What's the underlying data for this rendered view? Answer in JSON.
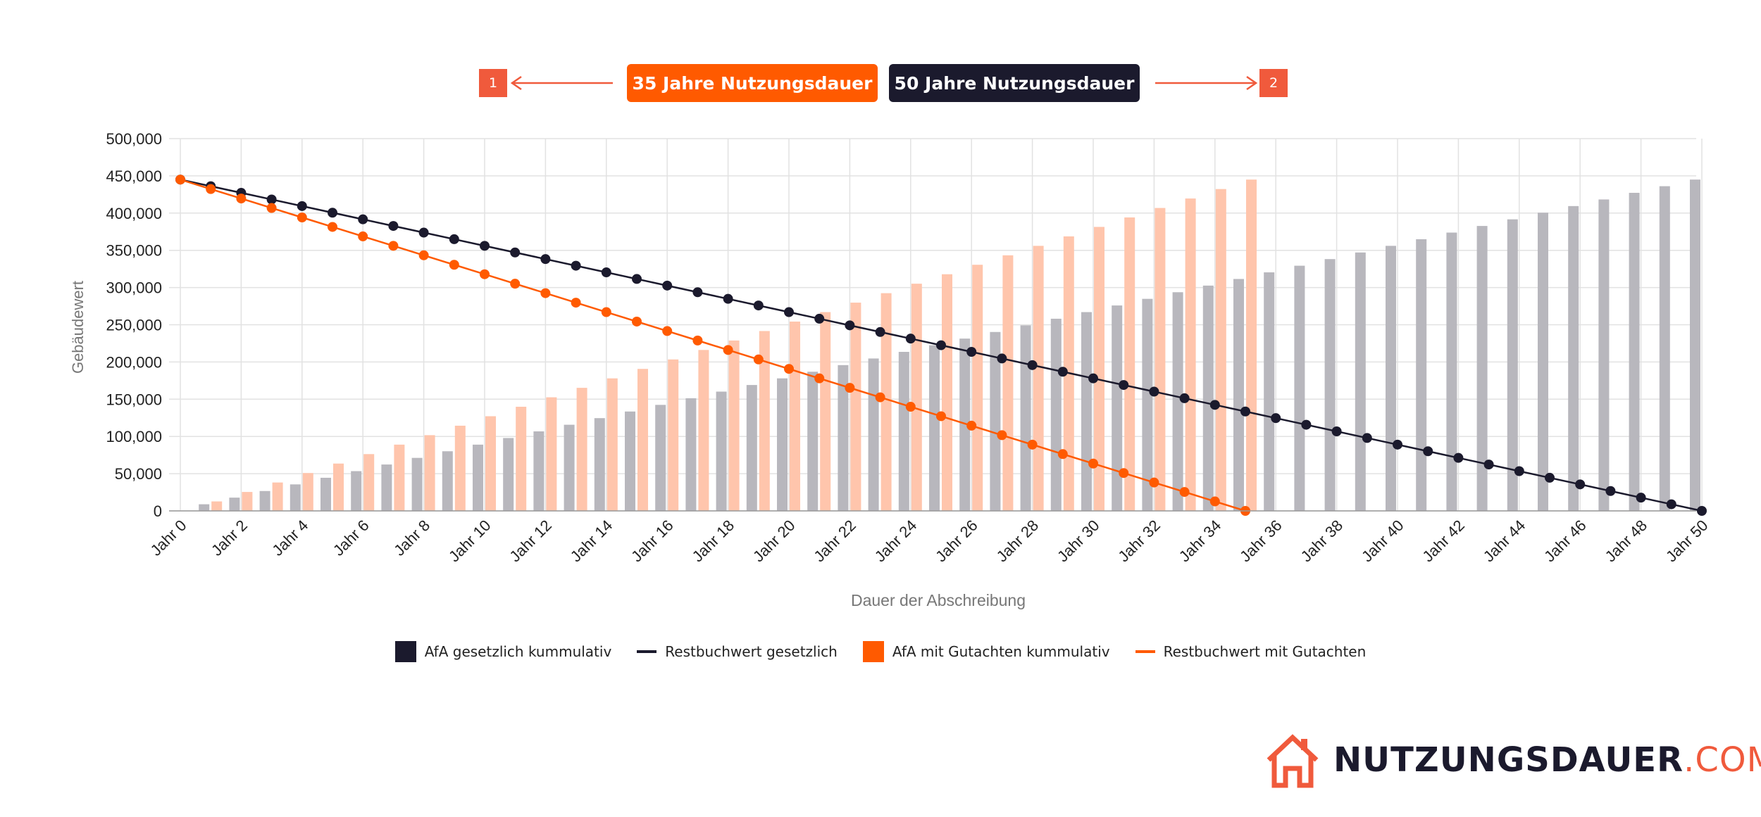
{
  "header": {
    "button_35": "35 Jahre Nutzungsdauer",
    "button_50": "50 Jahre Nutzungsdauer",
    "badge_1": "1",
    "badge_2": "2"
  },
  "colors": {
    "orange": "#ff5a00",
    "orange_light": "#ffc5ac",
    "dark": "#1b1a2d",
    "grey_bar": "#b8b7bd",
    "badge": "#f05a3c"
  },
  "legend": {
    "afa_gesetzlich": "AfA gesetzlich kummulativ",
    "restbuchwert_gesetzlich": "Restbuchwert gesetzlich",
    "afa_gutachten": "AfA mit Gutachten kummulativ",
    "restbuchwert_gutachten": "Restbuchwert mit Gutachten"
  },
  "logo": {
    "main": "NUTZUNGSDAUER",
    "suffix": ".COM"
  },
  "chart_data": {
    "type": "bar+line",
    "title": "",
    "xlabel": "Dauer der Abschreibung",
    "ylabel": "Gebäudewert",
    "ylim": [
      0,
      500000
    ],
    "y_ticks": [
      "0",
      "50,000",
      "100,000",
      "150,000",
      "200,000",
      "250,000",
      "300,000",
      "350,000",
      "400,000",
      "450,000",
      "500,000"
    ],
    "y_tick_values": [
      0,
      50000,
      100000,
      150000,
      200000,
      250000,
      300000,
      350000,
      400000,
      450000,
      500000
    ],
    "x_tick_labels": [
      "Jahr 0",
      "Jahr 2",
      "Jahr 4",
      "Jahr 6",
      "Jahr 8",
      "Jahr 10",
      "Jahr 12",
      "Jahr 14",
      "Jahr 16",
      "Jahr 18",
      "Jahr 20",
      "Jahr 22",
      "Jahr 24",
      "Jahr 26",
      "Jahr 28",
      "Jahr 30",
      "Jahr 32",
      "Jahr 34",
      "Jahr 36",
      "Jahr 38",
      "Jahr 40",
      "Jahr 42",
      "Jahr 44",
      "Jahr 46",
      "Jahr 48",
      "Jahr 50"
    ],
    "years": [
      0,
      1,
      2,
      3,
      4,
      5,
      6,
      7,
      8,
      9,
      10,
      11,
      12,
      13,
      14,
      15,
      16,
      17,
      18,
      19,
      20,
      21,
      22,
      23,
      24,
      25,
      26,
      27,
      28,
      29,
      30,
      31,
      32,
      33,
      34,
      35,
      36,
      37,
      38,
      39,
      40,
      41,
      42,
      43,
      44,
      45,
      46,
      47,
      48,
      49,
      50
    ],
    "series": [
      {
        "name": "AfA gesetzlich kummulativ",
        "kind": "bar",
        "values": [
          0,
          8900,
          17800,
          26700,
          35600,
          44500,
          53400,
          62300,
          71200,
          80100,
          89000,
          97900,
          106800,
          115700,
          124600,
          133500,
          142400,
          151300,
          160200,
          169100,
          178000,
          186900,
          195800,
          204700,
          213600,
          222500,
          231400,
          240300,
          249200,
          258100,
          267000,
          275900,
          284800,
          293700,
          302600,
          311500,
          320400,
          329300,
          338200,
          347100,
          356000,
          364900,
          373800,
          382700,
          391600,
          400500,
          409400,
          418300,
          427200,
          436100,
          445000
        ]
      },
      {
        "name": "Restbuchwert gesetzlich",
        "kind": "line",
        "values": [
          445000,
          436100,
          427200,
          418300,
          409400,
          400500,
          391600,
          382700,
          373800,
          364900,
          356000,
          347100,
          338200,
          329300,
          320400,
          311500,
          302600,
          293700,
          284800,
          275900,
          267000,
          258100,
          249200,
          240300,
          231400,
          222500,
          213600,
          204700,
          195800,
          186900,
          178000,
          169100,
          160200,
          151300,
          142400,
          133500,
          124600,
          115700,
          106800,
          97900,
          89000,
          80100,
          71200,
          62300,
          53400,
          44500,
          35600,
          26700,
          17800,
          8900,
          0
        ]
      },
      {
        "name": "AfA mit Gutachten kummulativ",
        "kind": "bar",
        "values": [
          0,
          12714,
          25429,
          38143,
          50857,
          63571,
          76286,
          89000,
          101714,
          114429,
          127143,
          139857,
          152571,
          165286,
          178000,
          190714,
          203429,
          216143,
          228857,
          241571,
          254286,
          267000,
          279714,
          292429,
          305143,
          317857,
          330571,
          343286,
          356000,
          368714,
          381429,
          394143,
          406857,
          419571,
          432286,
          445000
        ]
      },
      {
        "name": "Restbuchwert mit Gutachten",
        "kind": "line",
        "values": [
          445000,
          432286,
          419571,
          406857,
          394143,
          381429,
          368714,
          356000,
          343286,
          330571,
          317857,
          305143,
          292429,
          279714,
          267000,
          254286,
          241571,
          228857,
          216143,
          203429,
          190714,
          178000,
          165286,
          152571,
          139857,
          127143,
          114429,
          101714,
          89000,
          76286,
          63571,
          50857,
          38143,
          25429,
          12714,
          0
        ]
      }
    ]
  }
}
